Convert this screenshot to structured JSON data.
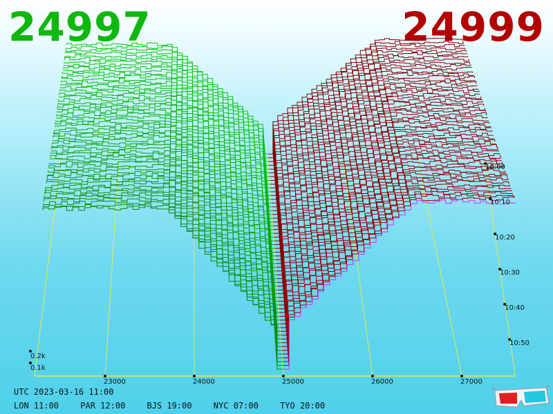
{
  "header": {
    "bid": "24997",
    "ask": "24999"
  },
  "status": {
    "utc": "UTC 2023-03-16 11:00",
    "zones": [
      "LON 11:00",
      "PAR 12:00",
      "BJS 19:00",
      "NYC 07:00",
      "TYO 20:00"
    ]
  },
  "icons": {
    "glasses": "3d-glasses-icon"
  },
  "chart_data": {
    "type": "area",
    "view": "3d-depth-surface",
    "bid_side": {
      "price_range": [
        22300,
        24997
      ],
      "color": "#0fb70f"
    },
    "ask_side": {
      "price_range": [
        24999,
        27600
      ],
      "color": "#a00000"
    },
    "price_axis": {
      "ticks": [
        23000,
        24000,
        25000,
        26000,
        27000
      ],
      "labels": [
        "23000",
        "24000",
        "25000",
        "26000",
        "27000"
      ]
    },
    "volume_axis": {
      "ticks": [
        0.1,
        0.2
      ],
      "labels": [
        "0.1k",
        "0.2k"
      ]
    },
    "time_axis": {
      "ticks": [
        "10:00",
        "10:10",
        "10:20",
        "10:30",
        "10:40",
        "10:50"
      ]
    },
    "snapshot_count": 58,
    "current_snapshot_color": "#cc33ff",
    "grid": true
  }
}
